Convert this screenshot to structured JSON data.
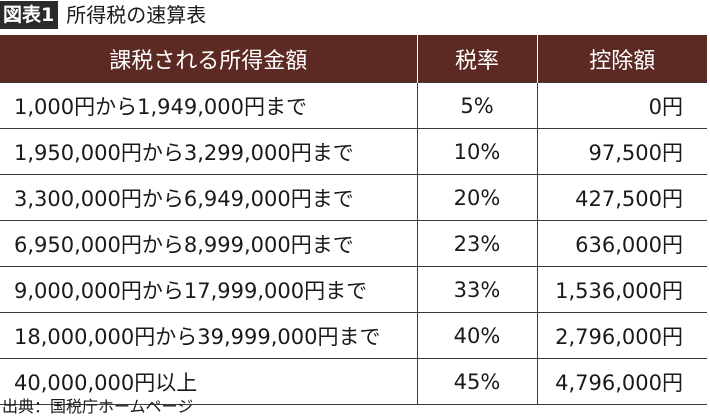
{
  "figure": {
    "tag": "図表1",
    "title": "所得税の速算表"
  },
  "table": {
    "headers": [
      "課税される所得金額",
      "税率",
      "控除額"
    ],
    "rows": [
      {
        "income": "1,000円から1,949,000円まで",
        "rate": "5%",
        "deduction": "0円"
      },
      {
        "income": "1,950,000円から3,299,000円まで",
        "rate": "10%",
        "deduction": "97,500円"
      },
      {
        "income": "3,300,000円から6,949,000円まで",
        "rate": "20%",
        "deduction": "427,500円"
      },
      {
        "income": "6,950,000円から8,999,000円まで",
        "rate": "23%",
        "deduction": "636,000円"
      },
      {
        "income": "9,000,000円から17,999,000円まで",
        "rate": "33%",
        "deduction": "1,536,000円"
      },
      {
        "income": "18,000,000円から39,999,000円まで",
        "rate": "40%",
        "deduction": "2,796,000円"
      },
      {
        "income": "40,000,000円以上",
        "rate": "45%",
        "deduction": "4,796,000円"
      }
    ]
  },
  "source": "出典：国税庁ホームページ",
  "colors": {
    "header_bg": "#5c2a23",
    "tag_bg": "#2b2b2b"
  }
}
